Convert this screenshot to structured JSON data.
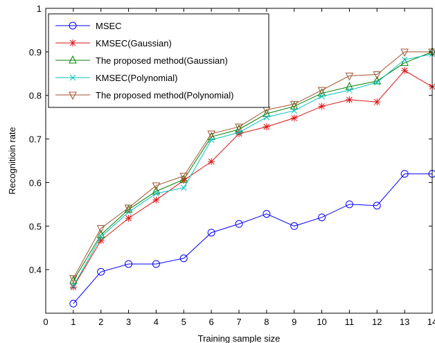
{
  "chart_data": {
    "type": "line",
    "title": "",
    "xlabel": "Training sample size",
    "ylabel": "Recognitioin rate",
    "xlim": [
      0,
      14
    ],
    "ylim": [
      0.3,
      1
    ],
    "xticks": [
      "0",
      "1",
      "2",
      "3",
      "4",
      "5",
      "6",
      "7",
      "8",
      "9",
      "10",
      "11",
      "12",
      "13",
      "14"
    ],
    "yticks": [
      "0.4",
      "0.5",
      "0.6",
      "0.7",
      "0.8",
      "0.9",
      "1"
    ],
    "legend_position": "top-left",
    "grid": false,
    "x": [
      1,
      2,
      3,
      4,
      5,
      6,
      7,
      8,
      9,
      10,
      11,
      12,
      13,
      14
    ],
    "series": [
      {
        "name": "MSEC",
        "color": "#0000ff",
        "marker": "circle",
        "values": [
          0.322,
          0.395,
          0.413,
          0.413,
          0.426,
          0.485,
          0.505,
          0.528,
          0.5,
          0.52,
          0.55,
          0.547,
          0.62,
          0.62
        ]
      },
      {
        "name": "KMSEC(Gaussian)",
        "color": "#dd1111",
        "marker": "star",
        "values": [
          0.36,
          0.467,
          0.518,
          0.56,
          0.605,
          0.648,
          0.712,
          0.728,
          0.748,
          0.775,
          0.79,
          0.785,
          0.857,
          0.82
        ]
      },
      {
        "name": "The proposed method(Gaussian)",
        "color": "#008000",
        "marker": "triangle-up",
        "values": [
          0.375,
          0.48,
          0.538,
          0.58,
          0.607,
          0.705,
          0.722,
          0.758,
          0.775,
          0.805,
          0.82,
          0.833,
          0.875,
          0.9
        ]
      },
      {
        "name": "KMSEC(Polynomial)",
        "color": "#00bfbf",
        "marker": "x",
        "values": [
          0.362,
          0.475,
          0.532,
          0.575,
          0.588,
          0.698,
          0.715,
          0.75,
          0.765,
          0.798,
          0.812,
          0.83,
          0.882,
          0.895
        ]
      },
      {
        "name": "The proposed method(Polynomial)",
        "color": "#a0522d",
        "marker": "triangle-down",
        "values": [
          0.38,
          0.495,
          0.542,
          0.593,
          0.615,
          0.712,
          0.728,
          0.767,
          0.78,
          0.812,
          0.845,
          0.848,
          0.9,
          0.9
        ]
      }
    ]
  }
}
